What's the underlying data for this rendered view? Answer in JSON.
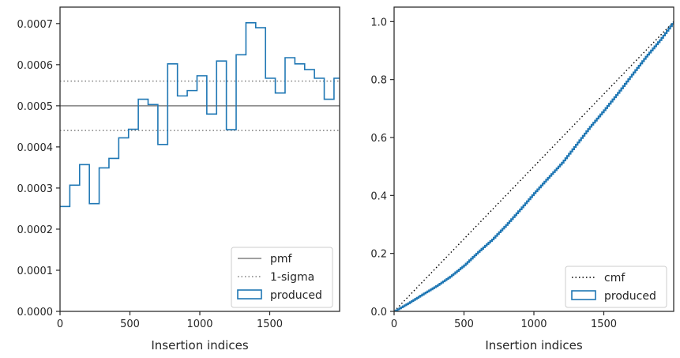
{
  "chart_data": [
    {
      "type": "histogram",
      "xlabel": "Insertion indices",
      "ylabel": "",
      "xlim": [
        0,
        2000
      ],
      "ylim": [
        0,
        0.00074
      ],
      "x_ticks": [
        "0",
        "500",
        "1000",
        "1500"
      ],
      "y_ticks": [
        "0.0000",
        "0.0001",
        "0.0002",
        "0.0003",
        "0.0004",
        "0.0005",
        "0.0006",
        "0.0007"
      ],
      "bin_edges": [
        0,
        70,
        140,
        210,
        280,
        350,
        420,
        490,
        560,
        630,
        700,
        770,
        840,
        910,
        980,
        1050,
        1120,
        1190,
        1260,
        1330,
        1400,
        1470,
        1540,
        1610,
        1680,
        1750,
        1820,
        1890,
        1960,
        2030
      ],
      "values": [
        0.000255,
        0.000307,
        0.000357,
        0.000262,
        0.000349,
        0.000372,
        0.000422,
        0.000443,
        0.000516,
        0.000503,
        0.000406,
        0.000602,
        0.000524,
        0.000537,
        0.000573,
        0.00048,
        0.000609,
        0.000442,
        0.000624,
        0.000702,
        0.00069,
        0.000567,
        0.000531,
        0.000617,
        0.000602,
        0.000588,
        0.000567,
        0.000516,
        0.000567
      ],
      "hlines": [
        {
          "label": "pmf",
          "y": 0.0005,
          "style": "solid",
          "color": "#808080"
        },
        {
          "label": "1-sigma",
          "y": 0.00056,
          "style": "dotted",
          "color": "#808080"
        },
        {
          "label": "",
          "y": 0.00044,
          "style": "dotted",
          "color": "#808080"
        }
      ],
      "legend": {
        "position": "lower right",
        "entries": [
          {
            "label": "pmf",
            "kind": "solid-line"
          },
          {
            "label": "1-sigma",
            "kind": "dotted-line"
          },
          {
            "label": "produced",
            "kind": "patch"
          }
        ]
      },
      "colors": {
        "series": "#1f77b4",
        "reference": "#808080"
      },
      "grid": false
    },
    {
      "type": "line",
      "xlabel": "Insertion indices",
      "ylabel": "",
      "xlim": [
        0,
        2000
      ],
      "ylim": [
        0,
        1.05
      ],
      "x_ticks": [
        "0",
        "500",
        "1000",
        "1500"
      ],
      "y_ticks": [
        "0.0",
        "0.2",
        "0.4",
        "0.6",
        "0.8",
        "1.0"
      ],
      "series": [
        {
          "label": "cmf",
          "style": "dotted",
          "color": "#000000",
          "x": [
            0,
            2000
          ],
          "y": [
            0,
            1.0
          ]
        },
        {
          "label": "produced",
          "style": "step",
          "color": "#1f77b4",
          "x": [
            0,
            100,
            200,
            300,
            400,
            500,
            600,
            700,
            800,
            900,
            1000,
            1100,
            1200,
            1300,
            1400,
            1500,
            1600,
            1700,
            1800,
            1900,
            2000
          ],
          "y": [
            0,
            0.028,
            0.058,
            0.087,
            0.12,
            0.159,
            0.205,
            0.248,
            0.298,
            0.352,
            0.408,
            0.461,
            0.513,
            0.575,
            0.637,
            0.694,
            0.754,
            0.817,
            0.879,
            0.936,
            1.0
          ]
        }
      ],
      "legend": {
        "position": "lower right",
        "entries": [
          {
            "label": "cmf",
            "kind": "dotted-line"
          },
          {
            "label": "produced",
            "kind": "patch"
          }
        ]
      },
      "grid": false
    }
  ]
}
